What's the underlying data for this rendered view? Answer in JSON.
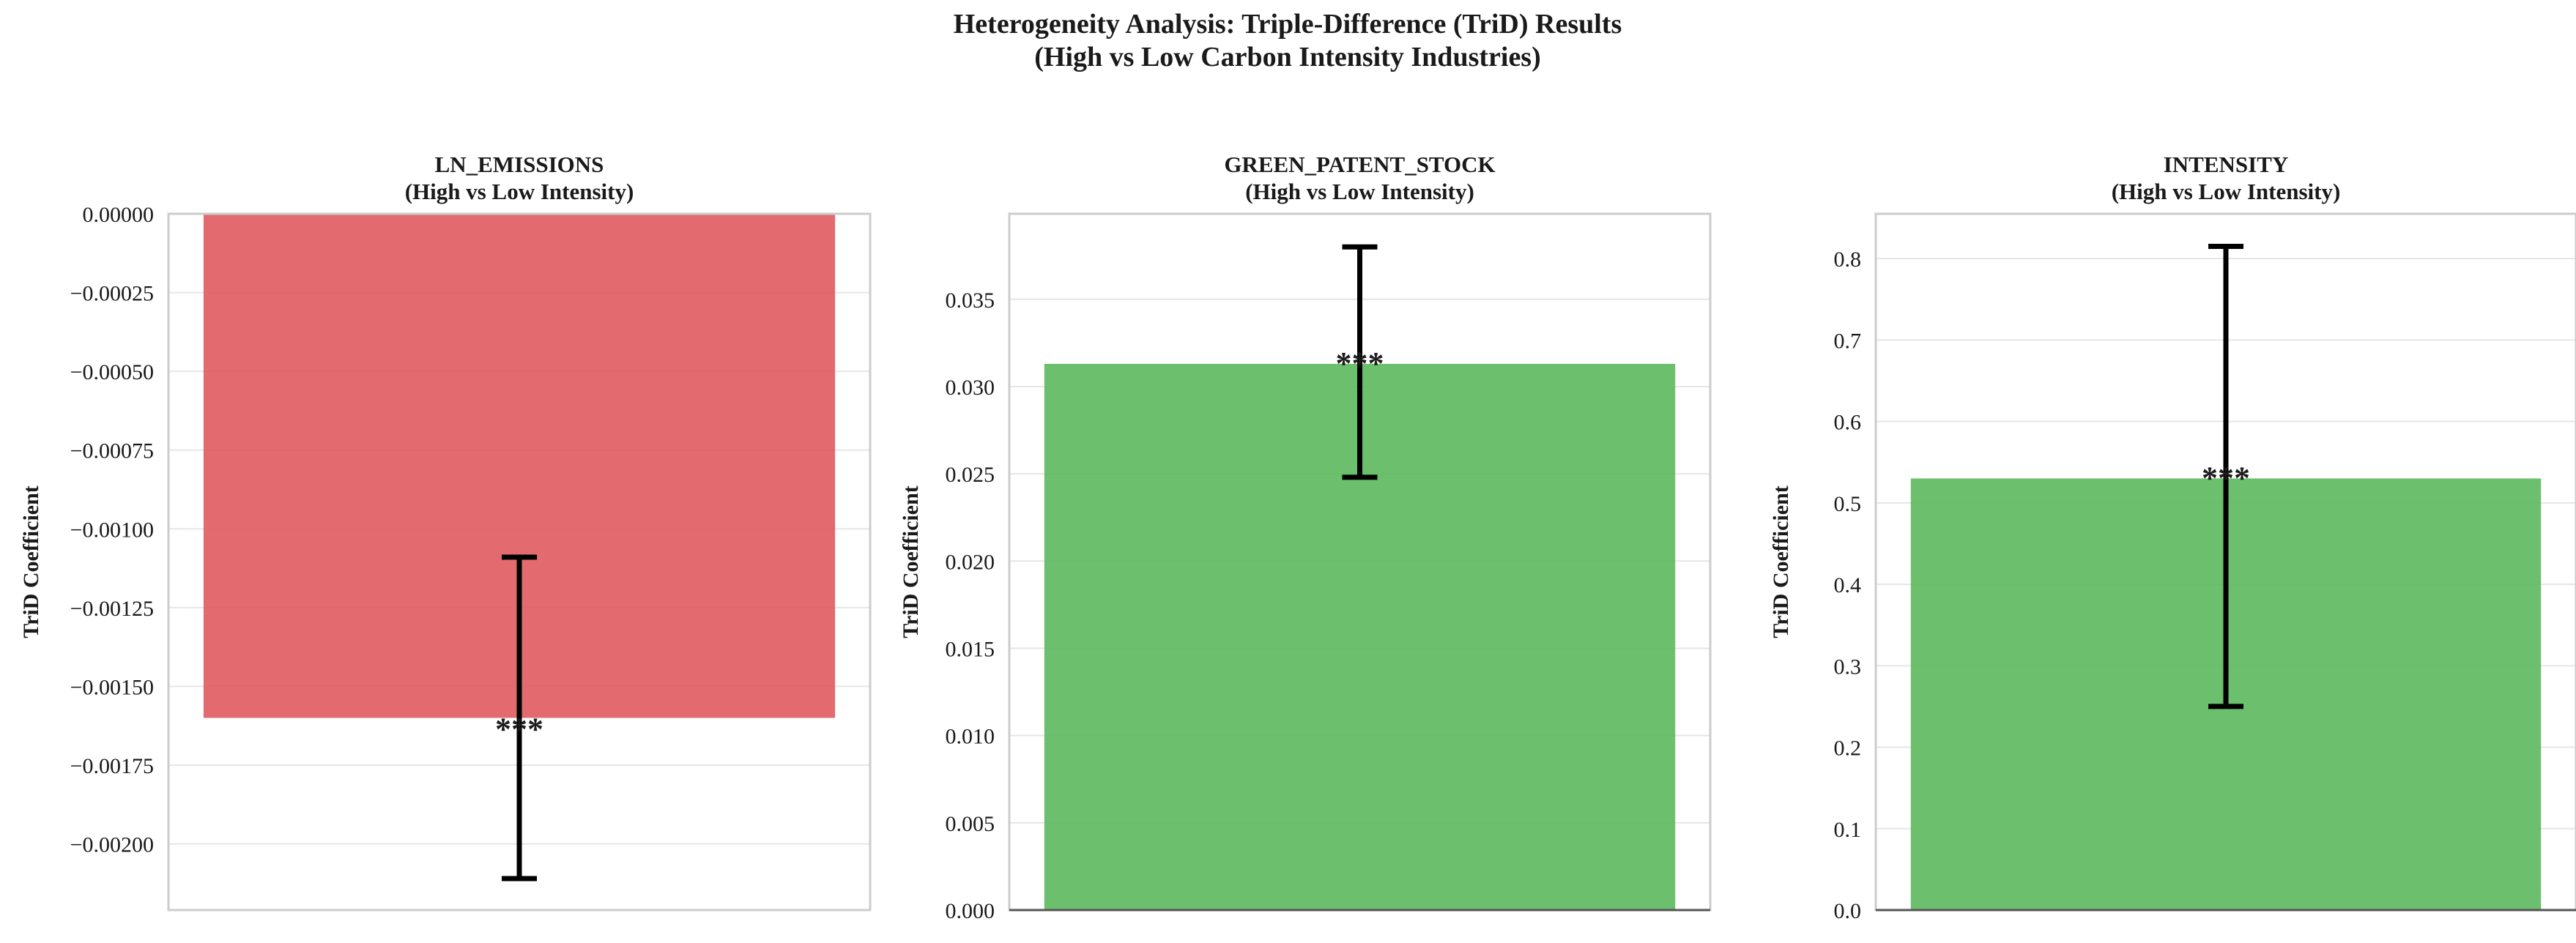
{
  "figure_title": {
    "line1": "Heterogeneity Analysis: Triple-Difference (TriD) Results",
    "line2": "(High vs Low Carbon Intensity Industries)"
  },
  "colors": {
    "negative": "#e05a5f",
    "positive": "#5cb85c",
    "error_bar": "#000000",
    "grid": "#e6e6e6",
    "frame": "#cccccc"
  },
  "chart_data": [
    {
      "type": "bar",
      "title": "LN_EMISSIONS",
      "subtitle": "(High vs Low Intensity)",
      "ylabel": "TriD Coefficient",
      "categories": [
        ""
      ],
      "values": [
        -0.0016
      ],
      "error": {
        "lower": -0.00211,
        "upper": -0.00109
      },
      "significance": "***",
      "ylim": [
        -0.00221,
        0.0
      ],
      "yticks": [
        0.0,
        -0.00025,
        -0.0005,
        -0.00075,
        -0.001,
        -0.00125,
        -0.0015,
        -0.00175,
        -0.002
      ],
      "ytick_labels": [
        "0.00000",
        "−0.00025",
        "−0.00050",
        "−0.00075",
        "−0.00100",
        "−0.00125",
        "−0.00150",
        "−0.00175",
        "−0.00200"
      ],
      "grid": true
    },
    {
      "type": "bar",
      "title": "GREEN_PATENT_STOCK",
      "subtitle": "(High vs Low Intensity)",
      "ylabel": "TriD Coefficient",
      "categories": [
        ""
      ],
      "values": [
        0.0313
      ],
      "error": {
        "lower": 0.0248,
        "upper": 0.038
      },
      "significance": "***",
      "ylim": [
        0.0,
        0.0399
      ],
      "yticks": [
        0.0,
        0.005,
        0.01,
        0.015,
        0.02,
        0.025,
        0.03,
        0.035
      ],
      "ytick_labels": [
        "0.000",
        "0.005",
        "0.010",
        "0.015",
        "0.020",
        "0.025",
        "0.030",
        "0.035"
      ],
      "grid": true
    },
    {
      "type": "bar",
      "title": "INTENSITY",
      "subtitle": "(High vs Low Intensity)",
      "ylabel": "TriD Coefficient",
      "categories": [
        ""
      ],
      "values": [
        0.53
      ],
      "error": {
        "lower": 0.25,
        "upper": 0.815
      },
      "significance": "***",
      "ylim": [
        0.0,
        0.855
      ],
      "yticks": [
        0.0,
        0.1,
        0.2,
        0.3,
        0.4,
        0.5,
        0.6,
        0.7,
        0.8
      ],
      "ytick_labels": [
        "0.0",
        "0.1",
        "0.2",
        "0.3",
        "0.4",
        "0.5",
        "0.6",
        "0.7",
        "0.8"
      ],
      "grid": true
    }
  ]
}
